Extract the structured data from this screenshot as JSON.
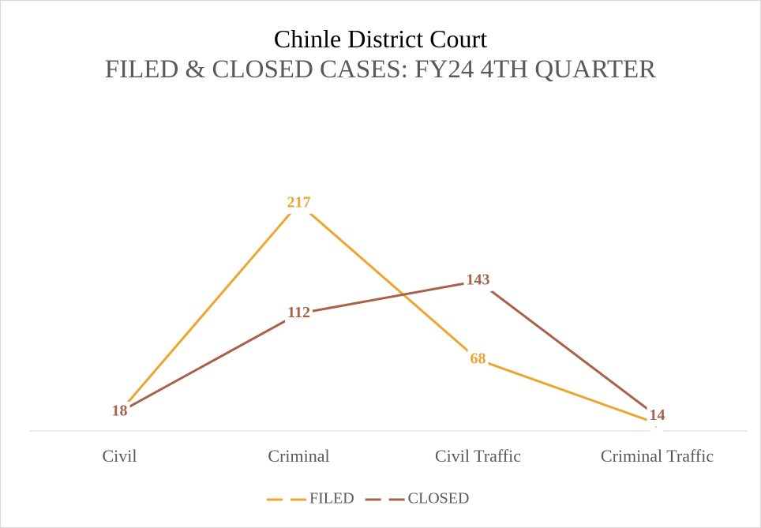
{
  "chart_data": {
    "type": "line",
    "title": "Chinle District Court",
    "subtitle": "FILED & CLOSED CASES: FY24 4TH QUARTER",
    "categories": [
      "Civil",
      "Criminal",
      "Civil Traffic",
      "Criminal Traffic"
    ],
    "series": [
      {
        "name": "FILED",
        "color": "#eea52f",
        "values": [
          18,
          217,
          68,
          7
        ]
      },
      {
        "name": "CLOSED",
        "color": "#a8614a",
        "values": [
          18,
          112,
          143,
          14
        ]
      }
    ],
    "ylim": [
      0,
      250
    ],
    "legend": "bottom"
  }
}
